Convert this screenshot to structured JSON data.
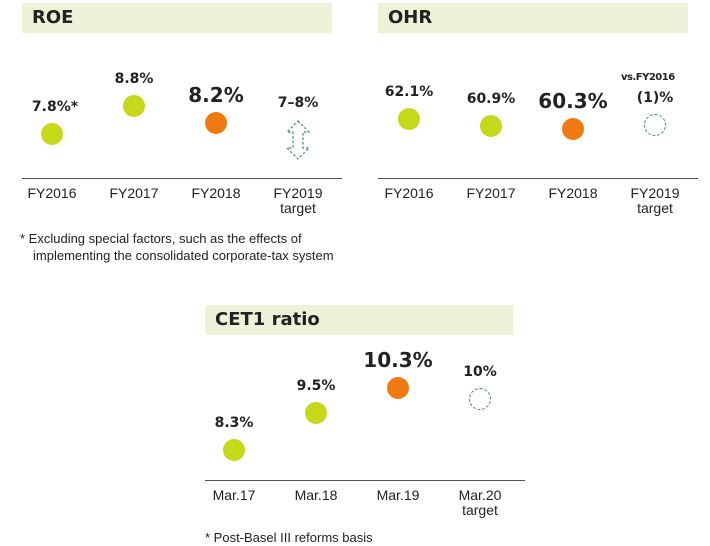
{
  "colors": {
    "actual": "#c5d81a",
    "latest": "#ef7a12",
    "target_outline": "#3f8c6a",
    "title_bg": "#eef2d9"
  },
  "roe": {
    "title": "ROE",
    "footnote_line1": "* Excluding special factors, such as the effects of",
    "footnote_line2": "implementing the consolidated corporate-tax system"
  },
  "ohr": {
    "title": "OHR",
    "target_note": "vs.FY2016"
  },
  "cet1": {
    "title": "CET1 ratio",
    "footnote": "* Post-Basel III reforms basis"
  },
  "chart_data": [
    {
      "type": "scatter",
      "title": "ROE",
      "categories": [
        "FY2016",
        "FY2017",
        "FY2018",
        "FY2019 target"
      ],
      "category_lines": [
        [
          "FY2016"
        ],
        [
          "FY2017"
        ],
        [
          "FY2018"
        ],
        [
          "FY2019",
          "target"
        ]
      ],
      "values": [
        7.8,
        8.8,
        8.2,
        null
      ],
      "labels": [
        "7.8%*",
        "8.8%",
        "8.2%",
        "7–8%"
      ],
      "target_range": [
        7,
        8
      ],
      "unit": "%"
    },
    {
      "type": "scatter",
      "title": "OHR",
      "categories": [
        "FY2016",
        "FY2017",
        "FY2018",
        "FY2019 target"
      ],
      "category_lines": [
        [
          "FY2016"
        ],
        [
          "FY2017"
        ],
        [
          "FY2018"
        ],
        [
          "FY2019",
          "target"
        ]
      ],
      "values": [
        62.1,
        60.9,
        60.3,
        null
      ],
      "labels": [
        "62.1%",
        "60.9%",
        "60.3%",
        "(1)%"
      ],
      "target_change_vs_fy2016": -1,
      "unit": "%"
    },
    {
      "type": "scatter",
      "title": "CET1 ratio",
      "categories": [
        "Mar.17",
        "Mar.18",
        "Mar.19",
        "Mar.20 target"
      ],
      "category_lines": [
        [
          "Mar.17"
        ],
        [
          "Mar.18"
        ],
        [
          "Mar.19"
        ],
        [
          "Mar.20",
          "target"
        ]
      ],
      "values": [
        8.3,
        9.5,
        10.3,
        10
      ],
      "labels": [
        "8.3%",
        "9.5%",
        "10.3%",
        "10%"
      ],
      "unit": "%"
    }
  ]
}
